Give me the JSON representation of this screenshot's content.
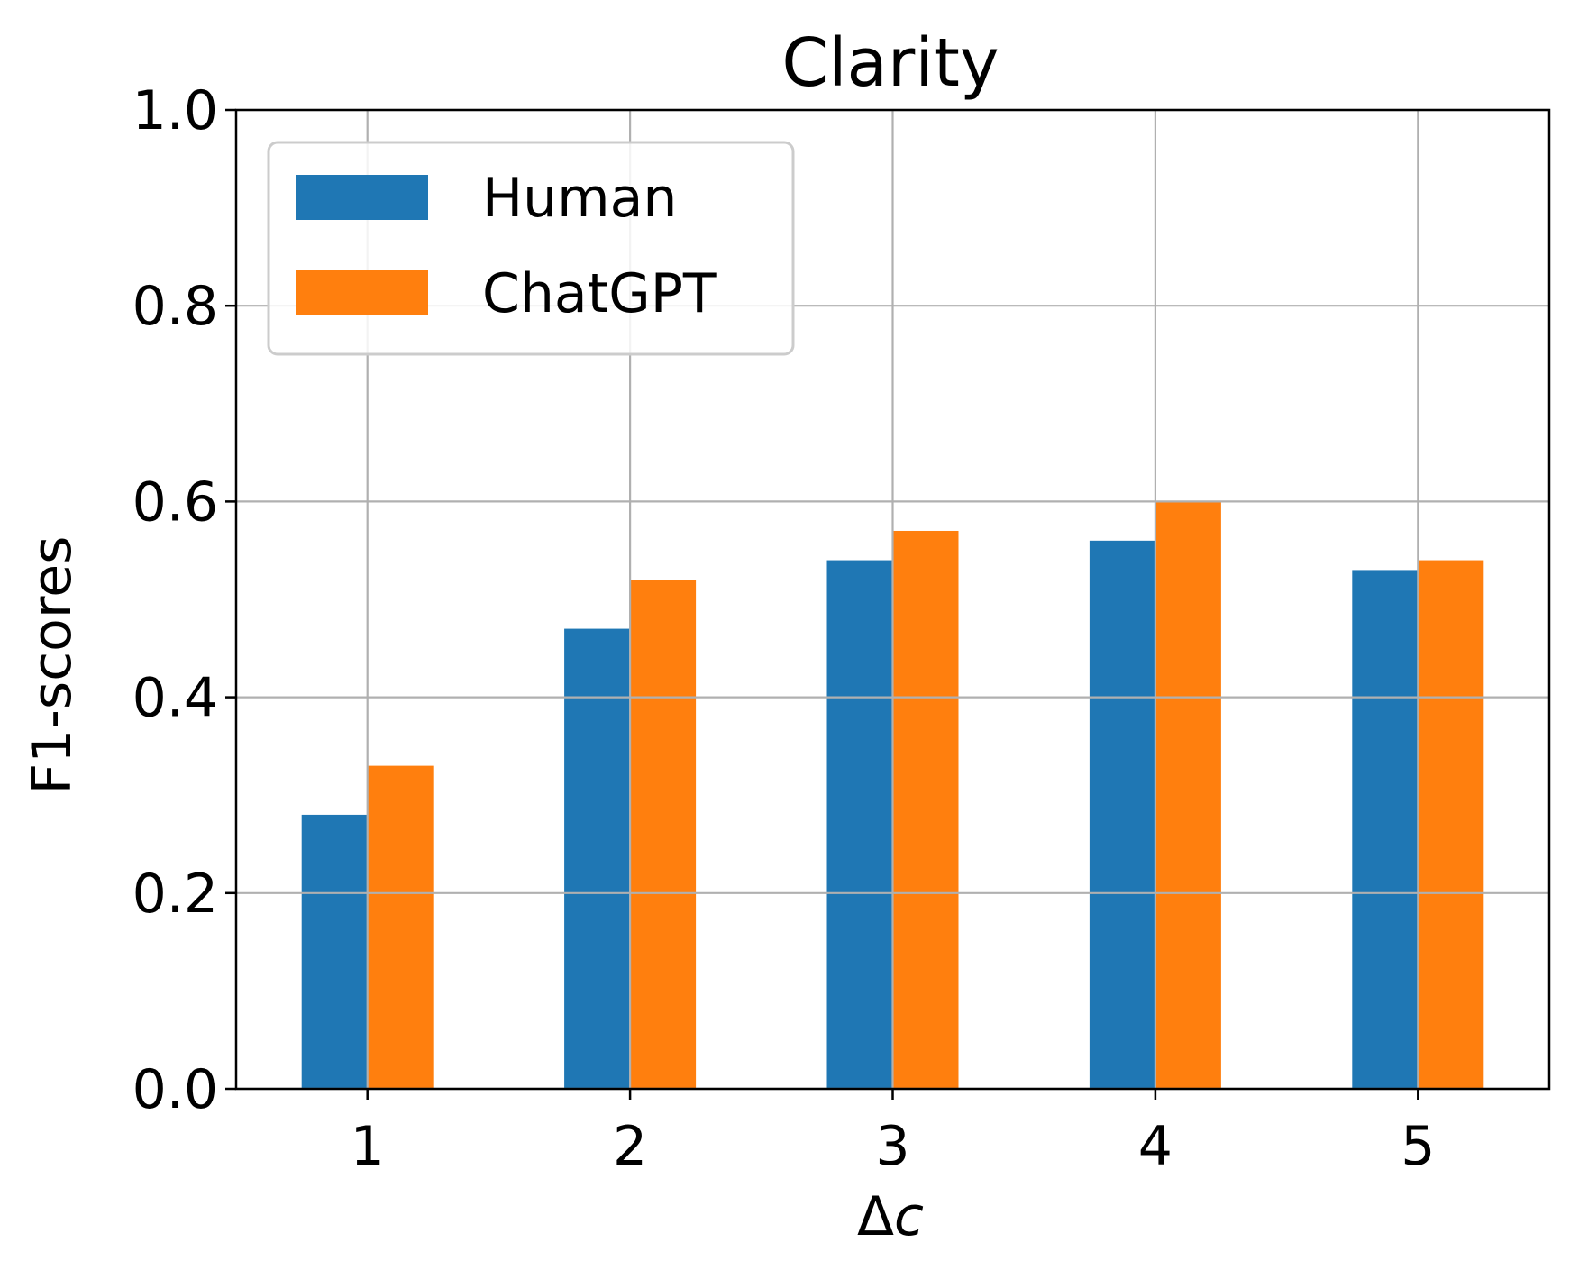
{
  "chart_data": {
    "type": "bar",
    "title": "Clarity",
    "xlabel": "Δ",
    "xlabel_var": "c",
    "ylabel": "F1-scores",
    "categories": [
      "1",
      "2",
      "3",
      "4",
      "5"
    ],
    "series": [
      {
        "name": "Human",
        "color": "#1f77b4",
        "values": [
          0.28,
          0.47,
          0.54,
          0.56,
          0.53
        ]
      },
      {
        "name": "ChatGPT",
        "color": "#ff7f0e",
        "values": [
          0.33,
          0.52,
          0.57,
          0.6,
          0.54
        ]
      }
    ],
    "ylim": [
      0,
      1.0
    ],
    "yticks": [
      "0.0",
      "0.2",
      "0.4",
      "0.6",
      "0.8",
      "1.0"
    ],
    "grid": true,
    "legend_position": "top-left"
  }
}
